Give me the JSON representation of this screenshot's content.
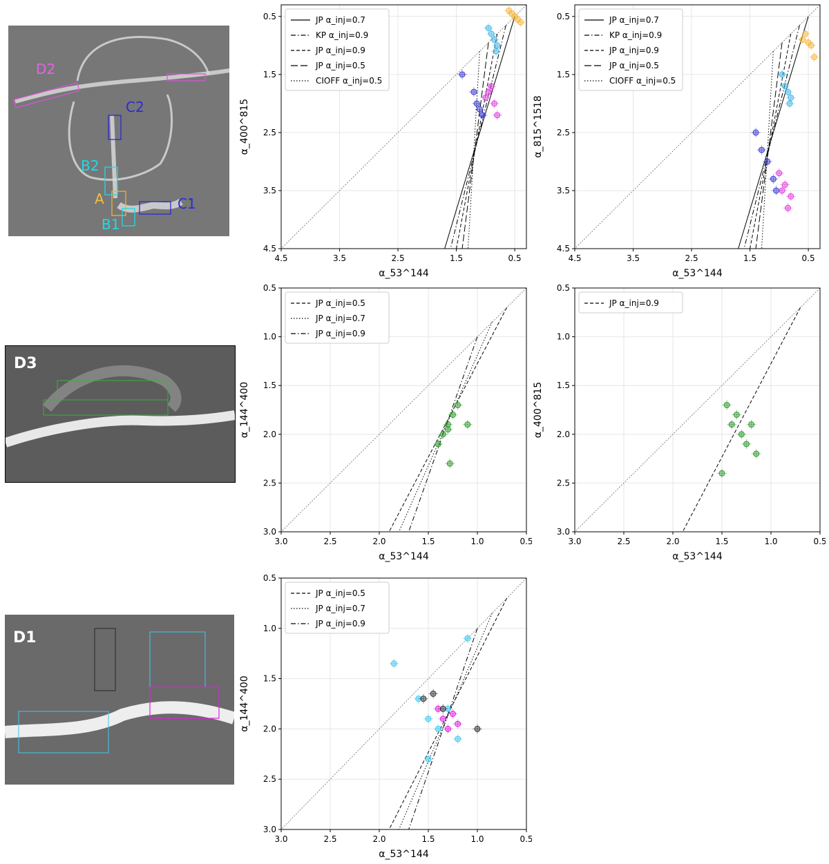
{
  "images": {
    "top": {
      "region_labels": [
        {
          "text": "D2",
          "color": "#e066e0"
        },
        {
          "text": "C2",
          "color": "#2a2ad8"
        },
        {
          "text": "B2",
          "color": "#22d8e6"
        },
        {
          "text": "A",
          "color": "#f0c040"
        },
        {
          "text": "B1",
          "color": "#22d8e6"
        },
        {
          "text": "C1",
          "color": "#2a2ad8"
        }
      ]
    },
    "middle": {
      "label": "D3"
    },
    "bottom": {
      "label": "D1"
    }
  },
  "colors": {
    "A": "#f5b942",
    "B": "#45b8e8",
    "C": "#3c3cd2",
    "D2": "#e040e0",
    "green": "#2e9a2e",
    "D1_cyan": "#3cc8f0",
    "D1_magenta": "#e020e0",
    "D1_black": "#333333"
  },
  "chart_data": [
    {
      "id": "top-left",
      "type": "scatter",
      "xlabel": "α_53^144",
      "ylabel": "α_400^815",
      "xlim": [
        4.5,
        0.3
      ],
      "ylim": [
        4.5,
        0.3
      ],
      "xticks": [
        "4.5",
        "3.5",
        "2.5",
        "1.5",
        "0.5"
      ],
      "yticks": [
        "0.5",
        "1.5",
        "2.5",
        "3.5",
        "4.5"
      ],
      "legend": [
        {
          "label": "JP α_inj=0.7",
          "style": "solid"
        },
        {
          "label": "KP α_inj=0.9",
          "style": "dashdot"
        },
        {
          "label": "JP α_inj=0.9",
          "style": "dashed"
        },
        {
          "label": "JP α_inj=0.5",
          "style": "longdash"
        },
        {
          "label": "CIOFF α_inj=0.5",
          "style": "dotted"
        }
      ],
      "series": [
        {
          "group": "A",
          "x": [
            0.6,
            0.55,
            0.5,
            0.45,
            0.4
          ],
          "y": [
            0.4,
            0.45,
            0.5,
            0.55,
            0.6
          ]
        },
        {
          "group": "B",
          "x": [
            0.95,
            0.9,
            0.85,
            0.8,
            0.82
          ],
          "y": [
            0.7,
            0.8,
            0.9,
            1.0,
            1.1
          ]
        },
        {
          "group": "C",
          "x": [
            1.4,
            1.2,
            1.15,
            1.1,
            1.05
          ],
          "y": [
            1.5,
            1.8,
            2.0,
            2.1,
            2.2
          ]
        },
        {
          "group": "D2",
          "x": [
            1.0,
            0.9,
            0.85,
            0.8,
            0.95
          ],
          "y": [
            1.9,
            1.7,
            2.0,
            2.2,
            1.8
          ]
        }
      ]
    },
    {
      "id": "top-right",
      "type": "scatter",
      "xlabel": "α_53^144",
      "ylabel": "α_815^1518",
      "xlim": [
        4.5,
        0.3
      ],
      "ylim": [
        4.5,
        0.3
      ],
      "xticks": [
        "4.5",
        "3.5",
        "2.5",
        "1.5",
        "0.5"
      ],
      "yticks": [
        "0.5",
        "1.5",
        "2.5",
        "3.5",
        "4.5"
      ],
      "legend": [
        {
          "label": "JP α_inj=0.7",
          "style": "solid"
        },
        {
          "label": "KP α_inj=0.9",
          "style": "dashdot"
        },
        {
          "label": "JP α_inj=0.9",
          "style": "dashed"
        },
        {
          "label": "JP α_inj=0.5",
          "style": "longdash"
        },
        {
          "label": "CIOFF α_inj=0.5",
          "style": "dotted"
        }
      ],
      "series": [
        {
          "group": "A",
          "x": [
            0.6,
            0.55,
            0.5,
            0.45,
            0.4
          ],
          "y": [
            0.9,
            0.8,
            0.95,
            1.0,
            1.2
          ]
        },
        {
          "group": "B",
          "x": [
            0.95,
            0.9,
            0.85,
            0.8,
            0.82
          ],
          "y": [
            1.5,
            1.7,
            1.8,
            1.9,
            2.0
          ]
        },
        {
          "group": "C",
          "x": [
            1.4,
            1.3,
            1.2,
            1.1,
            1.05
          ],
          "y": [
            2.5,
            2.8,
            3.0,
            3.3,
            3.5
          ]
        },
        {
          "group": "D2",
          "x": [
            1.0,
            0.95,
            0.9,
            0.85,
            0.8
          ],
          "y": [
            3.2,
            3.5,
            3.4,
            3.8,
            3.6
          ]
        }
      ]
    },
    {
      "id": "middle-left",
      "type": "scatter",
      "xlabel": "α_53^144",
      "ylabel": "α_144^400",
      "xlim": [
        3.0,
        0.5
      ],
      "ylim": [
        3.0,
        0.5
      ],
      "xticks": [
        "3.0",
        "2.5",
        "2.0",
        "1.5",
        "1.0",
        "0.5"
      ],
      "yticks": [
        "0.5",
        "1.0",
        "1.5",
        "2.0",
        "2.5",
        "3.0"
      ],
      "legend": [
        {
          "label": "JP α_inj=0.5",
          "style": "dashed"
        },
        {
          "label": "JP α_inj=0.7",
          "style": "dotted"
        },
        {
          "label": "JP α_inj=0.9",
          "style": "dashdot"
        }
      ],
      "series": [
        {
          "group": "green",
          "x": [
            1.3,
            1.25,
            1.2,
            1.35,
            1.4,
            1.3,
            1.1,
            1.28
          ],
          "y": [
            1.9,
            1.8,
            1.7,
            2.0,
            2.1,
            1.95,
            1.9,
            2.3
          ]
        }
      ]
    },
    {
      "id": "middle-right",
      "type": "scatter",
      "xlabel": "α_53^144",
      "ylabel": "α_400^815",
      "xlim": [
        3.0,
        0.5
      ],
      "ylim": [
        3.0,
        0.5
      ],
      "xticks": [
        "3.0",
        "2.5",
        "2.0",
        "1.5",
        "1.0",
        "0.5"
      ],
      "yticks": [
        "0.5",
        "1.0",
        "1.5",
        "2.0",
        "2.5",
        "3.0"
      ],
      "legend": [
        {
          "label": "JP α_inj=0.9",
          "style": "dashed"
        }
      ],
      "series": [
        {
          "group": "green",
          "x": [
            1.45,
            1.4,
            1.35,
            1.3,
            1.25,
            1.2,
            1.5,
            1.15
          ],
          "y": [
            1.7,
            1.9,
            1.8,
            2.0,
            2.1,
            1.9,
            2.4,
            2.2
          ]
        }
      ]
    },
    {
      "id": "bottom-left",
      "type": "scatter",
      "xlabel": "α_53^144",
      "ylabel": "α_144^400",
      "xlim": [
        3.0,
        0.5
      ],
      "ylim": [
        3.0,
        0.5
      ],
      "xticks": [
        "3.0",
        "2.5",
        "2.0",
        "1.5",
        "1.0",
        "0.5"
      ],
      "yticks": [
        "0.5",
        "1.0",
        "1.5",
        "2.0",
        "2.5",
        "3.0"
      ],
      "legend": [
        {
          "label": "JP α_inj=0.5",
          "style": "dashed"
        },
        {
          "label": "JP α_inj=0.7",
          "style": "dotted"
        },
        {
          "label": "JP α_inj=0.9",
          "style": "dashdot"
        }
      ],
      "series": [
        {
          "group": "D1_cyan",
          "x": [
            1.85,
            1.6,
            1.5,
            1.4,
            1.3,
            1.2,
            1.1,
            1.5
          ],
          "y": [
            1.35,
            1.7,
            1.9,
            2.0,
            1.8,
            2.1,
            1.1,
            2.3
          ]
        },
        {
          "group": "D1_magenta",
          "x": [
            1.4,
            1.35,
            1.3,
            1.25,
            1.2
          ],
          "y": [
            1.8,
            1.9,
            2.0,
            1.85,
            1.95
          ]
        },
        {
          "group": "D1_black",
          "x": [
            1.55,
            1.45,
            1.35,
            1.0
          ],
          "y": [
            1.7,
            1.65,
            1.8,
            2.0
          ]
        }
      ]
    }
  ]
}
